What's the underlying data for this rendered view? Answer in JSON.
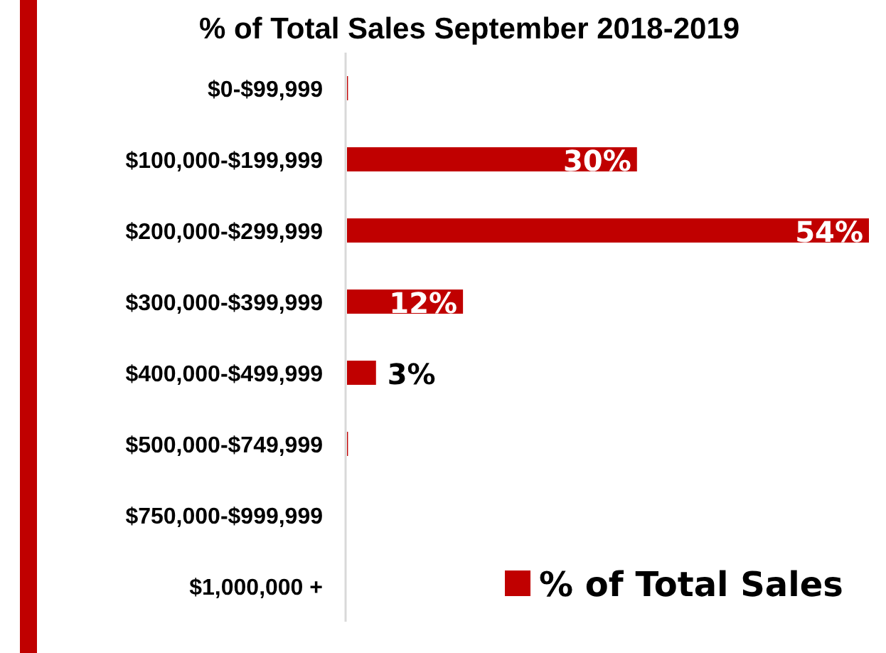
{
  "chart_data": {
    "type": "bar",
    "orientation": "horizontal",
    "title": "% of Total Sales September 2018-2019",
    "categories": [
      "$0-$99,999",
      "$100,000-$199,999",
      "$200,000-$299,999",
      "$300,000-$399,999",
      "$400,000-$499,999",
      "$500,000-$749,999",
      "$750,000-$999,999",
      "$1,000,000 +"
    ],
    "series": [
      {
        "name": "% of Total Sales",
        "color": "#c00000",
        "values": [
          0.1,
          30,
          54,
          12,
          3,
          0.1,
          0,
          0
        ],
        "value_labels": [
          null,
          "30%",
          "54%",
          "12%",
          "3%",
          null,
          null,
          null
        ]
      }
    ],
    "legend": "bottom right"
  }
}
